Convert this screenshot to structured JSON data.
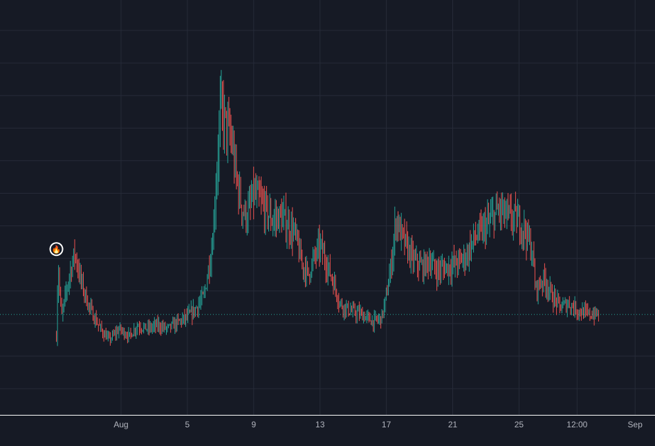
{
  "colors": {
    "background": "#161a25",
    "grid": "#262b38",
    "up": "#26a69a",
    "down": "#ef5350",
    "axis_text": "#b2b5be",
    "axis_line": "#ffffff",
    "price_line": "#26a69a",
    "marker_fill": "#f5b41a"
  },
  "chart_data": {
    "type": "candlestick",
    "title": "",
    "xlabel": "",
    "ylabel": "",
    "grid": true,
    "price_axis_labels_visible": false,
    "x_tick_labels": [
      {
        "label": "Aug",
        "day": 1
      },
      {
        "label": "5",
        "day": 5
      },
      {
        "label": "9",
        "day": 9
      },
      {
        "label": "13",
        "day": 13
      },
      {
        "label": "17",
        "day": 17
      },
      {
        "label": "21",
        "day": 21
      },
      {
        "label": "25",
        "day": 25
      },
      {
        "label": "12:00",
        "day": 28.5
      },
      {
        "label": "Sep",
        "day": 32
      }
    ],
    "xlim_days": [
      -6.3,
      33.2
    ],
    "ylim": [
      0,
      100
    ],
    "current_price_line": 21,
    "event_marker": {
      "icon": "flame-icon",
      "day": -2.9,
      "value": 39
    },
    "series_profile_approx": [
      [
        -2.9,
        15
      ],
      [
        -2.8,
        35
      ],
      [
        -2.6,
        20
      ],
      [
        -2.2,
        30
      ],
      [
        -1.8,
        38
      ],
      [
        -1.4,
        30
      ],
      [
        -1.0,
        24
      ],
      [
        -0.6,
        20
      ],
      [
        -0.1,
        16
      ],
      [
        0.3,
        14
      ],
      [
        0.9,
        17
      ],
      [
        1.5,
        15
      ],
      [
        2.0,
        18
      ],
      [
        2.6,
        17
      ],
      [
        3.2,
        18
      ],
      [
        3.8,
        17
      ],
      [
        4.5,
        19
      ],
      [
        4.9,
        20
      ],
      [
        5.4,
        22
      ],
      [
        6.0,
        26
      ],
      [
        6.5,
        40
      ],
      [
        7.0,
        78
      ],
      [
        7.4,
        72
      ],
      [
        7.7,
        68
      ],
      [
        7.9,
        60
      ],
      [
        8.3,
        50
      ],
      [
        8.6,
        48
      ],
      [
        9.0,
        54
      ],
      [
        9.4,
        52
      ],
      [
        9.7,
        50
      ],
      [
        10.1,
        47
      ],
      [
        10.6,
        48
      ],
      [
        11.0,
        46
      ],
      [
        11.5,
        43
      ],
      [
        11.9,
        35
      ],
      [
        12.3,
        32
      ],
      [
        12.6,
        36
      ],
      [
        13.0,
        40
      ],
      [
        13.4,
        35
      ],
      [
        13.8,
        30
      ],
      [
        14.2,
        24
      ],
      [
        14.8,
        22
      ],
      [
        15.5,
        21
      ],
      [
        16.2,
        19
      ],
      [
        16.7,
        20
      ],
      [
        17.0,
        26
      ],
      [
        17.3,
        35
      ],
      [
        17.6,
        48
      ],
      [
        17.8,
        44
      ],
      [
        18.2,
        40
      ],
      [
        18.6,
        36
      ],
      [
        19.2,
        34
      ],
      [
        19.6,
        36
      ],
      [
        20.0,
        33
      ],
      [
        20.6,
        34
      ],
      [
        21.2,
        35
      ],
      [
        21.8,
        37
      ],
      [
        22.3,
        42
      ],
      [
        22.8,
        44
      ],
      [
        23.3,
        47
      ],
      [
        23.8,
        50
      ],
      [
        24.3,
        48
      ],
      [
        24.9,
        47
      ],
      [
        25.4,
        44
      ],
      [
        25.8,
        38
      ],
      [
        26.0,
        28
      ],
      [
        26.5,
        31
      ],
      [
        27.0,
        26
      ],
      [
        27.5,
        23
      ],
      [
        28.0,
        24
      ],
      [
        28.6,
        22
      ],
      [
        29.2,
        21
      ],
      [
        29.8,
        21
      ]
    ]
  }
}
